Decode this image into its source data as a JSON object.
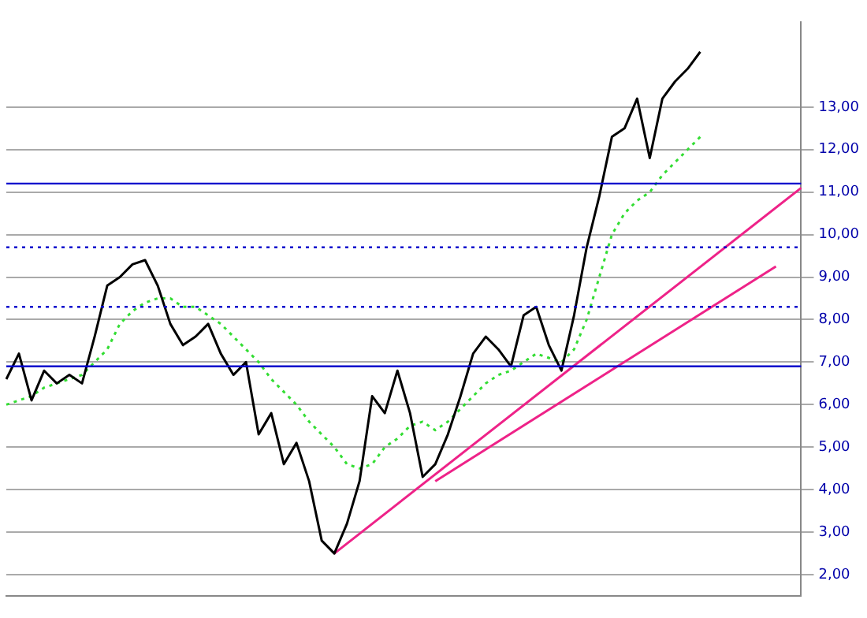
{
  "chart_data": {
    "type": "line",
    "categories": [
      null,
      null,
      null,
      null,
      null,
      null,
      null,
      null,
      null,
      null,
      null,
      null,
      null,
      null,
      null,
      null,
      null,
      null,
      null,
      null,
      null,
      null,
      null,
      null,
      null,
      null,
      null,
      null,
      null,
      null,
      null,
      null,
      null,
      null,
      null,
      null,
      null,
      null,
      null,
      null,
      null,
      null,
      null,
      null,
      null,
      null,
      null,
      null,
      null,
      null,
      null,
      null,
      null,
      null,
      null,
      null,
      null,
      null,
      null,
      null,
      null,
      null,
      null,
      null
    ],
    "series": [
      {
        "color": "#000000",
        "line_style": "solid",
        "values": [
          6.6,
          7.2,
          6.1,
          6.8,
          6.5,
          6.7,
          6.5,
          7.6,
          8.8,
          9.0,
          9.3,
          9.4,
          8.8,
          7.9,
          7.4,
          7.6,
          7.9,
          7.2,
          6.7,
          7.0,
          5.3,
          5.8,
          4.6,
          5.1,
          4.2,
          2.8,
          2.5,
          3.2,
          4.2,
          6.2,
          5.8,
          6.8,
          5.8,
          4.3,
          4.6,
          5.3,
          6.2,
          7.2,
          7.6,
          7.3,
          6.9,
          8.1,
          8.3,
          7.4,
          6.8,
          8.1,
          9.7,
          10.9,
          12.3,
          12.5,
          13.2,
          11.8,
          13.2,
          13.6,
          13.9,
          14.3,
          null,
          null,
          null,
          null,
          null,
          null,
          null,
          null
        ]
      },
      {
        "color": "#33dd33",
        "line_style": "dotted",
        "values": [
          6.0,
          6.1,
          6.2,
          6.4,
          6.5,
          6.6,
          6.7,
          7.0,
          7.3,
          7.9,
          8.2,
          8.4,
          8.5,
          8.5,
          8.3,
          8.3,
          8.1,
          7.9,
          7.6,
          7.3,
          7.0,
          6.6,
          6.3,
          6.0,
          5.6,
          5.3,
          5.0,
          4.6,
          4.5,
          4.6,
          5.0,
          5.2,
          5.5,
          5.6,
          5.4,
          5.6,
          5.9,
          6.2,
          6.5,
          6.7,
          6.8,
          7.0,
          7.2,
          7.1,
          7.0,
          7.3,
          8.0,
          9.0,
          10.0,
          10.5,
          10.8,
          11.0,
          11.4,
          11.7,
          12.0,
          12.3,
          null,
          null,
          null,
          null,
          null,
          null,
          null,
          null
        ]
      },
      {
        "color": "#ee2288",
        "line_style": "solid",
        "values": [
          null,
          null,
          null,
          null,
          null,
          null,
          null,
          null,
          null,
          null,
          null,
          null,
          null,
          null,
          null,
          null,
          null,
          null,
          null,
          null,
          null,
          null,
          null,
          null,
          null,
          null,
          2.5,
          null,
          null,
          null,
          null,
          null,
          null,
          null,
          null,
          null,
          null,
          null,
          null,
          null,
          null,
          null,
          null,
          null,
          null,
          null,
          null,
          null,
          null,
          null,
          null,
          null,
          null,
          null,
          null,
          null,
          null,
          null,
          null,
          null,
          null,
          null,
          null,
          11.1
        ]
      },
      {
        "color": "#ee2288",
        "line_style": "solid",
        "values": [
          null,
          null,
          null,
          null,
          null,
          null,
          null,
          null,
          null,
          null,
          null,
          null,
          null,
          null,
          null,
          null,
          null,
          null,
          null,
          null,
          null,
          null,
          null,
          null,
          null,
          null,
          null,
          null,
          null,
          null,
          null,
          null,
          null,
          null,
          4.2,
          null,
          null,
          null,
          null,
          null,
          null,
          null,
          null,
          null,
          null,
          null,
          null,
          null,
          null,
          null,
          null,
          null,
          null,
          null,
          null,
          null,
          null,
          null,
          null,
          null,
          null,
          9.25,
          null,
          null
        ]
      }
    ],
    "ylim": [
      1.5,
      15
    ],
    "yticks": [
      {
        "value": 2,
        "label": "2,00"
      },
      {
        "value": 3,
        "label": "3,00"
      },
      {
        "value": 4,
        "label": "4,00"
      },
      {
        "value": 5,
        "label": "5,00"
      },
      {
        "value": 6,
        "label": "6,00"
      },
      {
        "value": 7,
        "label": "7,00"
      },
      {
        "value": 8,
        "label": "8,00"
      },
      {
        "value": 9,
        "label": "9,00"
      },
      {
        "value": 10,
        "label": "10,00"
      },
      {
        "value": 11,
        "label": "11,00"
      },
      {
        "value": 12,
        "label": "12,00"
      },
      {
        "value": 13,
        "label": "13,00"
      }
    ],
    "ref_lines": [
      {
        "axis": "y",
        "value": 9.7,
        "color": "#0000cc",
        "line_style": "dotted"
      },
      {
        "axis": "y",
        "value": 8.3,
        "color": "#0000cc",
        "line_style": "dotted"
      },
      {
        "axis": "y",
        "value": 11.2,
        "color": "#0000cc",
        "line_style": "solid"
      },
      {
        "axis": "y",
        "value": 6.9,
        "color": "#0000cc",
        "line_style": "solid"
      }
    ],
    "grid": "y",
    "legend": false,
    "tick_labels": "y",
    "marker": "none"
  }
}
